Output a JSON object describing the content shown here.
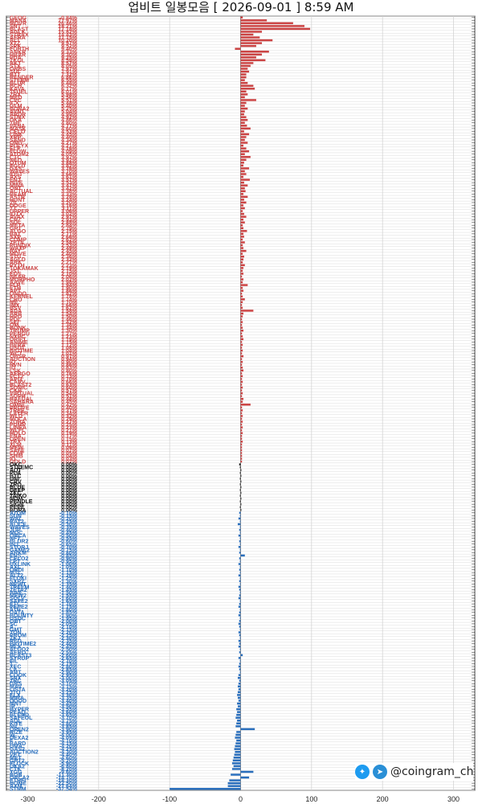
{
  "title": "업비트 일봉모음 [ 2026-09-01 ]  8:59 AM",
  "credit": {
    "handle": "@coingram_ch",
    "icons": [
      "twitter-icon",
      "telegram-icon"
    ]
  },
  "colors": {
    "up": "#cc4444",
    "flat": "#111111",
    "down": "#2a6fbd"
  },
  "chart_data": {
    "type": "bar",
    "orientation": "horizontal",
    "title": "업비트 일봉모음 [ 2026-09-01 ]  8:59 AM",
    "xlim": [
      -330,
      330
    ],
    "xticks": [
      -300,
      -200,
      -100,
      0,
      100,
      200,
      300
    ],
    "grid": true,
    "up": [
      [
        "GEOG",
        "-0.84%",
        3
      ],
      [
        "MANA",
        "77.97%",
        37
      ],
      [
        "MOVR",
        "26.46%",
        74
      ],
      [
        "SNT",
        "18.21%",
        90
      ],
      [
        "BLAST",
        "17.18%",
        98
      ],
      [
        "AGLK",
        "15.82%",
        30
      ],
      [
        "STRAX",
        "14.43%",
        18
      ],
      [
        "AERA",
        "11.15%",
        27
      ],
      [
        "ALT",
        "10.20%",
        45
      ],
      [
        "XTZ",
        "9.57%",
        30
      ],
      [
        "SPK",
        "9.52%",
        22
      ],
      [
        "FORTH",
        "9.40%",
        -8
      ],
      [
        "ANKR",
        "9.33%",
        40
      ],
      [
        "HBAR",
        "9.30%",
        30
      ],
      [
        "PDA",
        "9.25%",
        22
      ],
      [
        "ZKGL",
        "8.59%",
        35
      ],
      [
        "AKT",
        "8.57%",
        18
      ],
      [
        "STX",
        "8.05%",
        14
      ],
      [
        "ORBS",
        "7.97%",
        10
      ],
      [
        "SUI",
        "7.91%",
        12
      ],
      [
        "BTT",
        "7.32%",
        8
      ],
      [
        "RENDER",
        "6.86%",
        8
      ],
      [
        "STEEM",
        "6.55%",
        6
      ],
      [
        "BLUR",
        "6.48%",
        10
      ],
      [
        "BCH",
        "6.32%",
        18
      ],
      [
        "KAVA",
        "6.17%",
        20
      ],
      [
        "TFUEL",
        "6.01%",
        8
      ],
      [
        "ZRX",
        "5.98%",
        10
      ],
      [
        "MED",
        "5.56%",
        6
      ],
      [
        "CVC",
        "5.51%",
        22
      ],
      [
        "ICX",
        "5.48%",
        8
      ],
      [
        "GLM",
        "5.40%",
        6
      ],
      [
        "BORA2",
        "5.25%",
        10
      ],
      [
        "AVNT",
        "5.04%",
        6
      ],
      [
        "ARDR",
        "4.99%",
        5
      ],
      [
        "STMX",
        "4.92%",
        8
      ],
      [
        "DKA",
        "4.86%",
        10
      ],
      [
        "THE",
        "4.80%",
        6
      ],
      [
        "VANA",
        "4.77%",
        9
      ],
      [
        "MASK",
        "4.60%",
        14
      ],
      [
        "CELO",
        "4.53%",
        5
      ],
      [
        "LINK",
        "4.45%",
        12
      ],
      [
        "XRP",
        "4.40%",
        8
      ],
      [
        "SAND",
        "4.34%",
        6
      ],
      [
        "ONG",
        "4.27%",
        10
      ],
      [
        "POLYX",
        "4.21%",
        4
      ],
      [
        "ELF",
        "4.16%",
        8
      ],
      [
        "FLOW",
        "4.09%",
        12
      ],
      [
        "ATOM2",
        "4.05%",
        6
      ],
      [
        "CTC",
        "3.97%",
        14
      ],
      [
        "NEO",
        "3.92%",
        8
      ],
      [
        "QTUM",
        "3.88%",
        5
      ],
      [
        "EGLD",
        "3.82%",
        4
      ],
      [
        "GAS",
        "3.76%",
        12
      ],
      [
        "WAVES",
        "3.70%",
        6
      ],
      [
        "IOST",
        "3.66%",
        8
      ],
      [
        "AXS",
        "3.61%",
        4
      ],
      [
        "ENJ",
        "3.57%",
        13
      ],
      [
        "HIVE",
        "3.53%",
        5
      ],
      [
        "MINA",
        "3.47%",
        10
      ],
      [
        "ONT",
        "3.42%",
        6
      ],
      [
        "ACTUAL",
        "3.38%",
        7
      ],
      [
        "BEAM",
        "3.33%",
        4
      ],
      [
        "ASTR",
        "3.28%",
        10
      ],
      [
        "HUNT",
        "3.24%",
        5
      ],
      [
        "ZIL",
        "3.20%",
        8
      ],
      [
        "DOGE",
        "3.16%",
        4
      ],
      [
        "TT",
        "3.11%",
        6
      ],
      [
        "UPPER",
        "3.06%",
        3
      ],
      [
        "IOTX",
        "3.02%",
        5
      ],
      [
        "AVAX",
        "2.97%",
        8
      ],
      [
        "CHZ",
        "2.93%",
        4
      ],
      [
        "SOL",
        "2.88%",
        6
      ],
      [
        "META",
        "2.84%",
        3
      ],
      [
        "GRT",
        "2.79%",
        4
      ],
      [
        "ALGO",
        "2.75%",
        9
      ],
      [
        "BAT",
        "2.71%",
        4
      ],
      [
        "SXP",
        "2.66%",
        5
      ],
      [
        "COMP",
        "2.62%",
        3
      ],
      [
        "ZETA",
        "2.58%",
        6
      ],
      [
        "PUNDIX",
        "2.53%",
        3
      ],
      [
        "WAXP",
        "2.49%",
        4
      ],
      [
        "RAY",
        "2.45%",
        8
      ],
      [
        "MOVE",
        "2.40%",
        3
      ],
      [
        "STG",
        "2.36%",
        5
      ],
      [
        "AGLD",
        "2.32%",
        4
      ],
      [
        "ARK",
        "2.27%",
        3
      ],
      [
        "PYTH",
        "2.23%",
        6
      ],
      [
        "TOKAMAK",
        "2.19%",
        4
      ],
      [
        "JST",
        "2.15%",
        3
      ],
      [
        "EOS",
        "2.10%",
        4
      ],
      [
        "NEAR",
        "2.06%",
        2
      ],
      [
        "MORPHO",
        "2.02%",
        4
      ],
      [
        "AAVE",
        "1.98%",
        3
      ],
      [
        "FLR",
        "1.94%",
        10
      ],
      [
        "ETH",
        "1.90%",
        3
      ],
      [
        "APT",
        "1.86%",
        4
      ],
      [
        "ONDO",
        "1.82%",
        2
      ],
      [
        "KERNEL",
        "1.78%",
        3
      ],
      [
        "CRO",
        "1.74%",
        6
      ],
      [
        "ME",
        "1.70%",
        3
      ],
      [
        "IMX",
        "1.66%",
        2
      ],
      [
        "BSV",
        "1.62%",
        3
      ],
      [
        "ADA",
        "1.58%",
        18
      ],
      [
        "ARB",
        "1.54%",
        4
      ],
      [
        "HPO",
        "1.50%",
        3
      ],
      [
        "POL",
        "1.46%",
        2
      ],
      [
        "SEI",
        "1.42%",
        3
      ],
      [
        "OM",
        "1.38%",
        2
      ],
      [
        "BONK",
        "1.34%",
        3
      ],
      [
        "TRUMP",
        "1.30%",
        4
      ],
      [
        "PENGU",
        "1.27%",
        2
      ],
      [
        "NXPC",
        "1.23%",
        3
      ],
      [
        "DRIFT",
        "1.19%",
        4
      ],
      [
        "ANIME",
        "1.15%",
        2
      ],
      [
        "BERA",
        "1.12%",
        3
      ],
      [
        "USDT",
        "1.08%",
        2
      ],
      [
        "BIGTIME",
        "1.04%",
        3
      ],
      [
        "WCT",
        "1.01%",
        2
      ],
      [
        "OBSR",
        "0.97%",
        4
      ],
      [
        "AUCTION",
        "0.94%",
        2
      ],
      [
        "IQ",
        "0.90%",
        3
      ],
      [
        "RVN",
        "0.86%",
        2
      ],
      [
        "ID",
        "0.83%",
        3
      ],
      [
        "LSK",
        "0.80%",
        4
      ],
      [
        "AERGO",
        "0.76%",
        2
      ],
      [
        "FCT2",
        "0.73%",
        3
      ],
      [
        "API3",
        "0.70%",
        2
      ],
      [
        "CARV",
        "0.66%",
        3
      ],
      [
        "BLAST2",
        "0.63%",
        2
      ],
      [
        "SONIC",
        "0.60%",
        3
      ],
      [
        "CKB",
        "0.57%",
        2
      ],
      [
        "VIRTUAL",
        "0.54%",
        3
      ],
      [
        "SOPH",
        "0.51%",
        2
      ],
      [
        "HAEDAL",
        "0.48%",
        4
      ],
      [
        "SAHARA",
        "0.45%",
        3
      ],
      [
        "OMNI",
        "0.42%",
        14
      ],
      [
        "PROVE",
        "0.40%",
        2
      ],
      [
        "TREE",
        "0.37%",
        3
      ],
      [
        "LAYER",
        "0.34%",
        2
      ],
      [
        "WLD",
        "0.32%",
        3
      ],
      [
        "MOCA",
        "0.29%",
        2
      ],
      [
        "ZORA",
        "0.27%",
        3
      ],
      [
        "PUMP",
        "0.25%",
        2
      ],
      [
        "LINEA",
        "0.23%",
        3
      ],
      [
        "WLFI",
        "0.21%",
        2
      ],
      [
        "HOLO",
        "0.19%",
        3
      ],
      [
        "ENA",
        "0.17%",
        2
      ],
      [
        "OPEN",
        "0.15%",
        2
      ],
      [
        "TRX",
        "0.13%",
        3
      ],
      [
        "XLM",
        "0.11%",
        2
      ],
      [
        "MEW",
        "0.09%",
        2
      ],
      [
        "SAFE",
        "0.07%",
        2
      ],
      [
        "COW",
        "0.05%",
        2
      ],
      [
        "SHIB",
        "0.04%",
        2
      ],
      [
        "IO",
        "0.03%",
        2
      ],
      [
        "GOLD",
        "0.02%",
        2
      ]
    ],
    "flat": [
      [
        "OKC",
        "0.00%",
        -2
      ],
      [
        "STEEMC",
        "0.00%",
        -1
      ],
      [
        "AQT",
        "0.00%",
        1
      ],
      [
        "PLA",
        "0.00%",
        -1
      ],
      [
        "BTC",
        "0.00%",
        1
      ],
      [
        "UNI",
        "0.00%",
        -1
      ],
      [
        "CRV",
        "0.00%",
        1
      ],
      [
        "ZRO",
        "0.00%",
        -1
      ],
      [
        "BLUE",
        "0.00%",
        1
      ],
      [
        "DEEP",
        "0.00%",
        -1
      ],
      [
        "ZKC",
        "0.00%",
        1
      ],
      [
        "TAIKO",
        "0.00%",
        -1
      ],
      [
        "NOM",
        "0.00%",
        1
      ],
      [
        "PENDLE",
        "0.00%",
        -1
      ],
      [
        "SIGN",
        "0.00%",
        1
      ],
      [
        "PEPE",
        "0.00%",
        -1
      ],
      [
        "BORA",
        "0.00%",
        1
      ]
    ],
    "down": [
      [
        "ATOM",
        "-0.10%",
        -2
      ],
      [
        "SUN",
        "-0.15%",
        -1
      ],
      [
        "WAL",
        "-0.20%",
        -3
      ],
      [
        "BAT2",
        "-0.25%",
        -1
      ],
      [
        "ALICE",
        "-0.30%",
        -4
      ],
      [
        "WAVES",
        "-0.35%",
        -1
      ],
      [
        "JUP",
        "-0.40%",
        -2
      ],
      [
        "MOC",
        "-0.45%",
        -1
      ],
      [
        "ORCA",
        "-0.50%",
        -3
      ],
      [
        "NFT",
        "-0.55%",
        -1
      ],
      [
        "BLUR2",
        "-0.60%",
        -2
      ],
      [
        "INJ",
        "-0.65%",
        -1
      ],
      [
        "STORJ",
        "-0.70%",
        -3
      ],
      [
        "GAME2",
        "-0.75%",
        -1
      ],
      [
        "ARKM",
        "-0.80%",
        -2
      ],
      [
        "ENS",
        "-0.85%",
        6
      ],
      [
        "CELO2",
        "-0.90%",
        -2
      ],
      [
        "LPT",
        "-0.95%",
        -1
      ],
      [
        "UXLINK",
        "-1.00%",
        -3
      ],
      [
        "AXL",
        "-1.05%",
        -1
      ],
      [
        "ORDI",
        "-1.10%",
        -2
      ],
      [
        "MTL",
        "-1.15%",
        -1
      ],
      [
        "ALT2",
        "-1.20%",
        -3
      ],
      [
        "FLOKI",
        "-1.25%",
        -1
      ],
      [
        "SXP2",
        "-1.30%",
        -2
      ],
      [
        "NEWT",
        "-1.35%",
        -1
      ],
      [
        "TREEM",
        "-1.40%",
        -3
      ],
      [
        "ZETA2",
        "-1.45%",
        -2
      ],
      [
        "AWE",
        "-1.50%",
        -1
      ],
      [
        "MEW2",
        "-1.55%",
        -2
      ],
      [
        "SOLV",
        "-1.60%",
        -3
      ],
      [
        "SAFE2",
        "-1.65%",
        -1
      ],
      [
        "ETC",
        "-1.70%",
        -2
      ],
      [
        "PEPE2",
        "-1.75%",
        -3
      ],
      [
        "ATH",
        "-1.80%",
        -1
      ],
      [
        "DATA",
        "-1.85%",
        -2
      ],
      [
        "BOUNTY",
        "-1.90%",
        -3
      ],
      [
        "USDC",
        "-1.95%",
        -1
      ],
      [
        "OBT",
        "-2.00%",
        -2
      ],
      [
        "SC",
        "-2.05%",
        -3
      ],
      [
        "A",
        "-2.10%",
        -2
      ],
      [
        "GMT",
        "-2.15%",
        -1
      ],
      [
        "TON",
        "-2.20%",
        -3
      ],
      [
        "PROM",
        "-2.25%",
        -2
      ],
      [
        "ZKJ",
        "-2.30%",
        -1
      ],
      [
        "RED",
        "-2.35%",
        -3
      ],
      [
        "BIGTIME2",
        "-2.40%",
        -2
      ],
      [
        "MLK",
        "-2.45%",
        -3
      ],
      [
        "ALGO2",
        "-2.50%",
        -1
      ],
      [
        "AERO",
        "-2.55%",
        -2
      ],
      [
        "BLAST3",
        "-2.60%",
        3
      ],
      [
        "SYRUP",
        "-2.65%",
        -3
      ],
      [
        "FIL",
        "-2.70%",
        -1
      ],
      [
        "T",
        "-2.75%",
        -2
      ],
      [
        "XEC",
        "-2.80%",
        -3
      ],
      [
        "LA",
        "-2.85%",
        -2
      ],
      [
        "AHT",
        "-2.90%",
        -1
      ],
      [
        "COOK",
        "-2.95%",
        -3
      ],
      [
        "SNX",
        "-3.00%",
        -4
      ],
      [
        "ZRC",
        "-3.05%",
        -2
      ],
      [
        "GRS",
        "-3.10%",
        -3
      ],
      [
        "MAV",
        "-3.15%",
        -4
      ],
      [
        "LISTA",
        "-3.20%",
        -3
      ],
      [
        "JTO",
        "-3.25%",
        -4
      ],
      [
        "ELX",
        "-3.30%",
        -5
      ],
      [
        "MIRA",
        "-3.35%",
        -4
      ],
      [
        "DOOD",
        "-3.40%",
        -3
      ],
      [
        "MNT",
        "-3.45%",
        -5
      ],
      [
        "IP",
        "-3.50%",
        -4
      ],
      [
        "HYPER",
        "-3.55%",
        -6
      ],
      [
        "PEAQ",
        "-3.60%",
        -5
      ],
      [
        "BLEND",
        "-3.65%",
        -6
      ],
      [
        "SAFEOL",
        "-3.70%",
        -7
      ],
      [
        "AQL",
        "-3.75%",
        -5
      ],
      [
        "KITE",
        "-3.80%",
        -6
      ],
      [
        "NIL",
        "-3.85%",
        -7
      ],
      [
        "OPEN2",
        "-3.90%",
        20
      ],
      [
        "RIZE",
        "-3.95%",
        -6
      ],
      [
        "W",
        "-4.00%",
        -7
      ],
      [
        "DEXA2",
        "-4.05%",
        -8
      ],
      [
        "F",
        "-4.10%",
        -6
      ],
      [
        "BARD",
        "-4.15%",
        -7
      ],
      [
        "UMA",
        "-4.20%",
        -8
      ],
      [
        "GAS2",
        "-4.25%",
        -9
      ],
      [
        "AUCTION2",
        "-4.30%",
        -8
      ],
      [
        "VET",
        "-4.40%",
        -9
      ],
      [
        "MET",
        "-4.60%",
        -10
      ],
      [
        "GRT2",
        "-5.20%",
        -11
      ],
      [
        "FLOCK",
        "-5.90%",
        -12
      ],
      [
        "DKA2",
        "-6.80%",
        -10
      ],
      [
        "CTK",
        "-8.20%",
        -12
      ],
      [
        "YGG",
        "-9.60%",
        18
      ],
      [
        "BOB",
        "-11.30%",
        -14
      ],
      [
        "ORCA2",
        "-14.70%",
        12
      ],
      [
        "ETHFI",
        "-18.30%",
        -16
      ],
      [
        "HOME",
        "-22.50%",
        -18
      ],
      [
        "AXM",
        "-27.64%",
        -18
      ],
      [
        "STMM",
        "-37.54%",
        -100
      ]
    ]
  }
}
